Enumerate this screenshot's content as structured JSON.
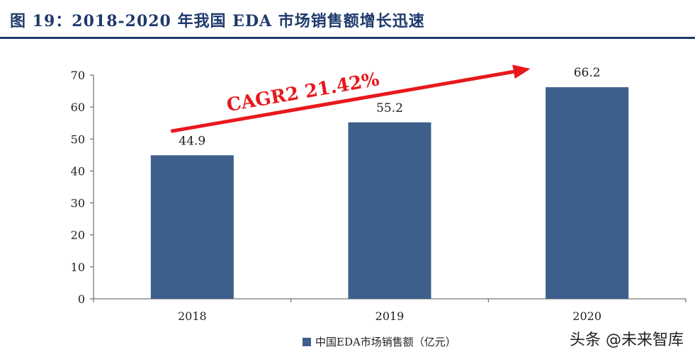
{
  "figure": {
    "title": "图 19：2018-2020 年我国 EDA 市场销售额增长迅速"
  },
  "chart_data": {
    "type": "bar",
    "categories": [
      "2018",
      "2019",
      "2020"
    ],
    "series": [
      {
        "name": "中国EDA市场销售额（亿元）",
        "values": [
          44.9,
          55.2,
          66.2
        ],
        "color": "#3d5f8c"
      }
    ],
    "data_labels": [
      "44.9",
      "55.2",
      "66.2"
    ],
    "ylim": [
      0,
      70
    ],
    "yticks": [
      0,
      10,
      20,
      30,
      40,
      50,
      60,
      70
    ],
    "grid": false,
    "legend_position": "bottom",
    "annotation": {
      "text": "CAGR2 21.42%",
      "color": "#e8181c"
    }
  },
  "watermark": "头条 @未来智库"
}
